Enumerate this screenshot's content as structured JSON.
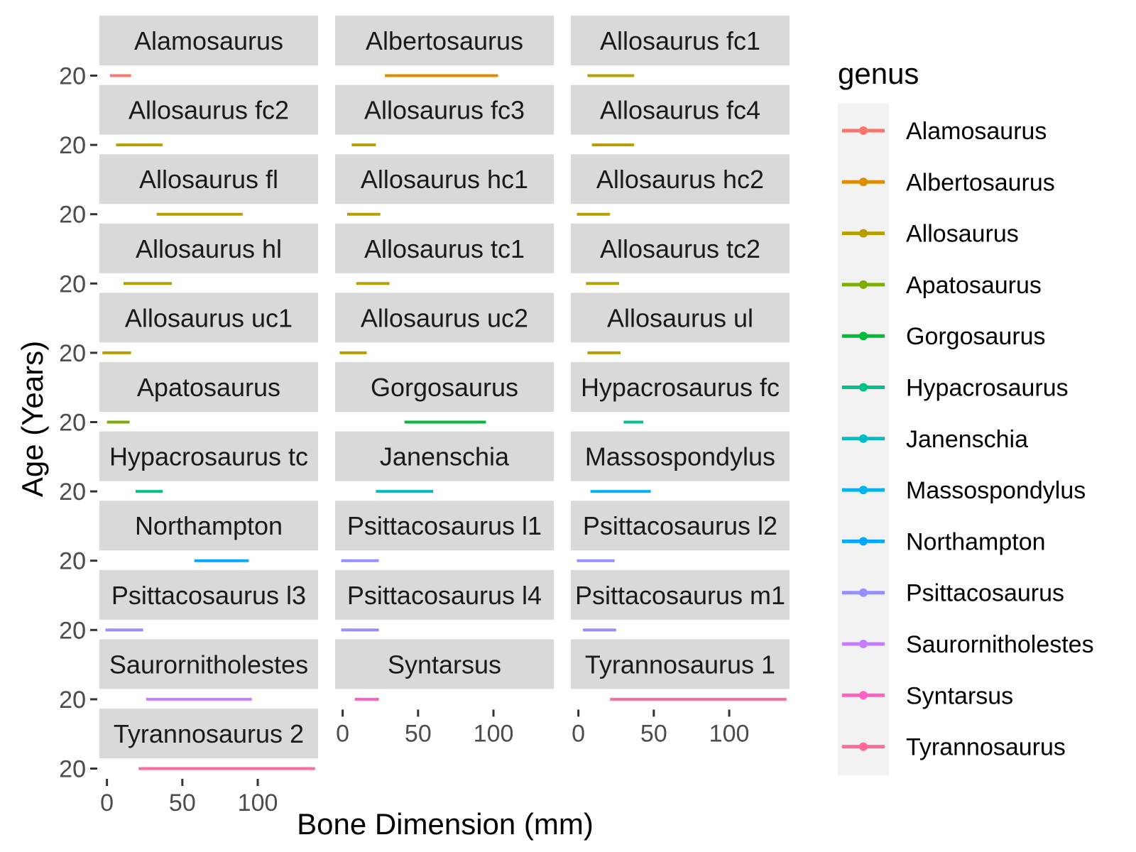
{
  "chart_data": {
    "type": "line",
    "facet_layout": "wrap",
    "ncol": 3,
    "xlabel": "Bone Dimension (mm)",
    "ylabel": "Age (Years)",
    "xlim": [
      -5,
      140
    ],
    "x_ticks": [
      0,
      50,
      100
    ],
    "y_ticks": [
      20
    ],
    "y_tick_overplotted": [
      "20",
      "0"
    ],
    "legend": {
      "title": "genus",
      "placement": "right",
      "entries": [
        {
          "label": "Alamosaurus",
          "color": "#F8766D"
        },
        {
          "label": "Albertosaurus",
          "color": "#DE8C00"
        },
        {
          "label": "Allosaurus",
          "color": "#B79F00"
        },
        {
          "label": "Apatosaurus",
          "color": "#7CAE00"
        },
        {
          "label": "Gorgosaurus",
          "color": "#00BA38"
        },
        {
          "label": "Hypacrosaurus",
          "color": "#00C08B"
        },
        {
          "label": "Janenschia",
          "color": "#00BFC4"
        },
        {
          "label": "Massospondylus",
          "color": "#00B4F0"
        },
        {
          "label": "Northampton",
          "color": "#00A9FF"
        },
        {
          "label": "Psittacosaurus",
          "color": "#9590FF"
        },
        {
          "label": "Saurornitholestes",
          "color": "#C77CFF"
        },
        {
          "label": "Syntarsus",
          "color": "#FF61C3"
        },
        {
          "label": "Tyrannosaurus",
          "color": "#FF6A98"
        }
      ]
    },
    "panels": [
      {
        "label": "Alamosaurus",
        "genus": "Alamosaurus",
        "x": [
          2,
          16
        ]
      },
      {
        "label": "Albertosaurus",
        "genus": "Albertosaurus",
        "x": [
          28,
          103
        ]
      },
      {
        "label": "Allosaurus fc1",
        "genus": "Allosaurus",
        "x": [
          6,
          37
        ]
      },
      {
        "label": "Allosaurus fc2",
        "genus": "Allosaurus",
        "x": [
          6,
          37
        ]
      },
      {
        "label": "Allosaurus fc3",
        "genus": "Allosaurus",
        "x": [
          6,
          22
        ]
      },
      {
        "label": "Allosaurus fc4",
        "genus": "Allosaurus",
        "x": [
          9,
          37
        ]
      },
      {
        "label": "Allosaurus fl",
        "genus": "Allosaurus",
        "x": [
          33,
          90
        ]
      },
      {
        "label": "Allosaurus hc1",
        "genus": "Allosaurus",
        "x": [
          3,
          25
        ]
      },
      {
        "label": "Allosaurus hc2",
        "genus": "Allosaurus",
        "x": [
          -1,
          21
        ]
      },
      {
        "label": "Allosaurus hl",
        "genus": "Allosaurus",
        "x": [
          11,
          43
        ]
      },
      {
        "label": "Allosaurus tc1",
        "genus": "Allosaurus",
        "x": [
          9,
          31
        ]
      },
      {
        "label": "Allosaurus tc2",
        "genus": "Allosaurus",
        "x": [
          5,
          27
        ]
      },
      {
        "label": "Allosaurus uc1",
        "genus": "Allosaurus",
        "x": [
          -3,
          16
        ]
      },
      {
        "label": "Allosaurus uc2",
        "genus": "Allosaurus",
        "x": [
          -2,
          16
        ]
      },
      {
        "label": "Allosaurus ul",
        "genus": "Allosaurus",
        "x": [
          6,
          28
        ]
      },
      {
        "label": "Apatosaurus",
        "genus": "Apatosaurus",
        "x": [
          0,
          15
        ]
      },
      {
        "label": "Gorgosaurus",
        "genus": "Gorgosaurus",
        "x": [
          41,
          95
        ]
      },
      {
        "label": "Hypacrosaurus fc",
        "genus": "Hypacrosaurus",
        "x": [
          30,
          43
        ]
      },
      {
        "label": "Hypacrosaurus tc",
        "genus": "Hypacrosaurus",
        "x": [
          19,
          37
        ]
      },
      {
        "label": "Janenschia",
        "genus": "Janenschia",
        "x": [
          22,
          60
        ]
      },
      {
        "label": "Massospondylus",
        "genus": "Massospondylus",
        "x": [
          8,
          48
        ]
      },
      {
        "label": "Northampton",
        "genus": "Northampton",
        "x": [
          58,
          94
        ]
      },
      {
        "label": "Psittacosaurus l1",
        "genus": "Psittacosaurus",
        "x": [
          -1,
          24
        ]
      },
      {
        "label": "Psittacosaurus l2",
        "genus": "Psittacosaurus",
        "x": [
          -1,
          24
        ]
      },
      {
        "label": "Psittacosaurus l3",
        "genus": "Psittacosaurus",
        "x": [
          -1,
          24
        ]
      },
      {
        "label": "Psittacosaurus l4",
        "genus": "Psittacosaurus",
        "x": [
          -1,
          24
        ]
      },
      {
        "label": "Psittacosaurus m1",
        "genus": "Psittacosaurus",
        "x": [
          3,
          25
        ]
      },
      {
        "label": "Saurornitholestes",
        "genus": "Saurornitholestes",
        "x": [
          26,
          96
        ]
      },
      {
        "label": "Syntarsus",
        "genus": "Syntarsus",
        "x": [
          8,
          24
        ]
      },
      {
        "label": "Tyrannosaurus 1",
        "genus": "Tyrannosaurus",
        "x": [
          21,
          138
        ]
      },
      {
        "label": "Tyrannosaurus 2",
        "genus": "Tyrannosaurus",
        "x": [
          21,
          138
        ]
      }
    ]
  }
}
